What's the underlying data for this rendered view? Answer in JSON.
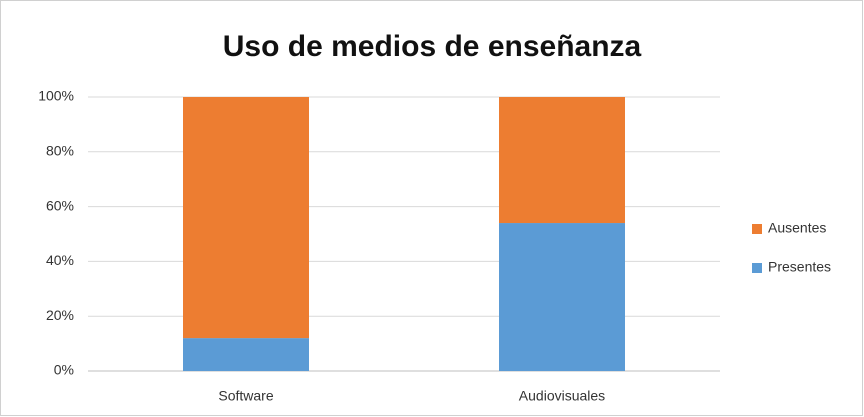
{
  "chart_data": {
    "type": "stacked_bar",
    "title": "Uso de medios de enseñanza",
    "categories": [
      "Software",
      "Audiovisuales"
    ],
    "series": [
      {
        "name": "Presentes",
        "color": "#5b9bd5",
        "values": [
          12,
          54
        ]
      },
      {
        "name": "Ausentes",
        "color": "#ed7d31",
        "values": [
          88,
          46
        ]
      }
    ],
    "ylim": [
      0,
      100
    ],
    "yticks": [
      {
        "value": 0,
        "label": "0%"
      },
      {
        "value": 20,
        "label": "20%"
      },
      {
        "value": 40,
        "label": "40%"
      },
      {
        "value": 60,
        "label": "60%"
      },
      {
        "value": 80,
        "label": "80%"
      },
      {
        "value": 100,
        "label": "100%"
      }
    ],
    "grid": true,
    "legend": "right"
  }
}
